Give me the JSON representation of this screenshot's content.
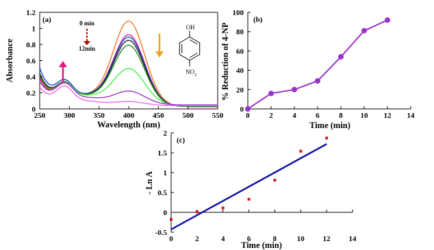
{
  "colors": {
    "axis": "#000000",
    "purple_series": "#9933cc",
    "fit_line": "#1010a8",
    "points_red": "#e01010",
    "arrow_pink": "#e8157a",
    "arrow_orange": "#f5a020",
    "arrow_darkred": "#c00000"
  },
  "chart_data": [
    {
      "panel": "(a)",
      "type": "line",
      "xlabel": "Wavelength (nm)",
      "ylabel": "Absorbance",
      "xlim": [
        250,
        550
      ],
      "ylim": [
        0,
        1.2
      ],
      "xticks": [
        250,
        300,
        350,
        400,
        450,
        500,
        550
      ],
      "yticks": [
        0,
        0.2,
        0.4,
        0.6,
        0.8,
        1,
        1.2
      ],
      "annotations": {
        "time_start": "0 min",
        "time_end": "12min",
        "struct_top": "OH",
        "struct_bottom": "NO",
        "struct_sub": "2"
      },
      "arrows": [
        "absorbance at ~290 nm increases",
        "absorbance at 400 nm decreases"
      ],
      "series": [
        {
          "color": "#f07820",
          "peak": 1.09,
          "base": 0.03,
          "uv250": 0.58,
          "valley": 0.2,
          "shoulder": 0.3
        },
        {
          "color": "#d81b8c",
          "peak": 0.92,
          "base": 0.03,
          "uv250": 0.55,
          "valley": 0.2,
          "shoulder": 0.29
        },
        {
          "color": "#1a3fd0",
          "peak": 0.89,
          "base": 0.03,
          "uv250": 0.7,
          "valley": 0.21,
          "shoulder": 0.32
        },
        {
          "color": "#222222",
          "peak": 0.85,
          "base": 0.03,
          "uv250": 0.62,
          "valley": 0.2,
          "shoulder": 0.3
        },
        {
          "color": "#1e8a1e",
          "peak": 0.79,
          "base": 0.03,
          "uv250": 0.6,
          "valley": 0.2,
          "shoulder": 0.31
        },
        {
          "color": "#44ee44",
          "peak": 0.5,
          "base": 0.04,
          "uv250": 0.52,
          "valley": 0.19,
          "shoulder": 0.31
        },
        {
          "color": "#9933cc",
          "peak": 0.22,
          "base": 0.05,
          "uv250": 0.5,
          "valley": 0.14,
          "shoulder": 0.3
        },
        {
          "color": "#ee66ee",
          "peak": 0.09,
          "base": 0.04,
          "uv250": 0.42,
          "valley": 0.09,
          "shoulder": 0.27
        }
      ]
    },
    {
      "panel": "(b)",
      "type": "line",
      "xlabel": "Time (min)",
      "ylabel": "% Reduction of 4-NP",
      "xlim": [
        0,
        14
      ],
      "ylim": [
        0,
        100
      ],
      "xticks": [
        0,
        2,
        4,
        6,
        8,
        10,
        12,
        14
      ],
      "yticks": [
        0,
        20,
        40,
        60,
        80,
        100
      ],
      "x": [
        0,
        2,
        4,
        6,
        8,
        10,
        12
      ],
      "y": [
        0,
        16,
        20,
        29,
        54,
        81,
        92
      ]
    },
    {
      "panel": "(c)",
      "type": "scatter",
      "xlabel": "Time (min)",
      "ylabel": "- Ln A",
      "xlim": [
        0,
        14
      ],
      "ylim": [
        -0.5,
        2
      ],
      "xticks": [
        0,
        2,
        4,
        6,
        8,
        10,
        12,
        14
      ],
      "yticks": [
        -0.5,
        0,
        0.5,
        1,
        1.5,
        2
      ],
      "x": [
        0,
        2,
        4,
        6,
        8,
        10,
        12
      ],
      "y": [
        -0.18,
        0.01,
        0.11,
        0.33,
        0.81,
        1.54,
        1.87
      ],
      "fit": {
        "x": [
          0,
          12
        ],
        "y": [
          -0.43,
          1.72
        ]
      }
    }
  ]
}
